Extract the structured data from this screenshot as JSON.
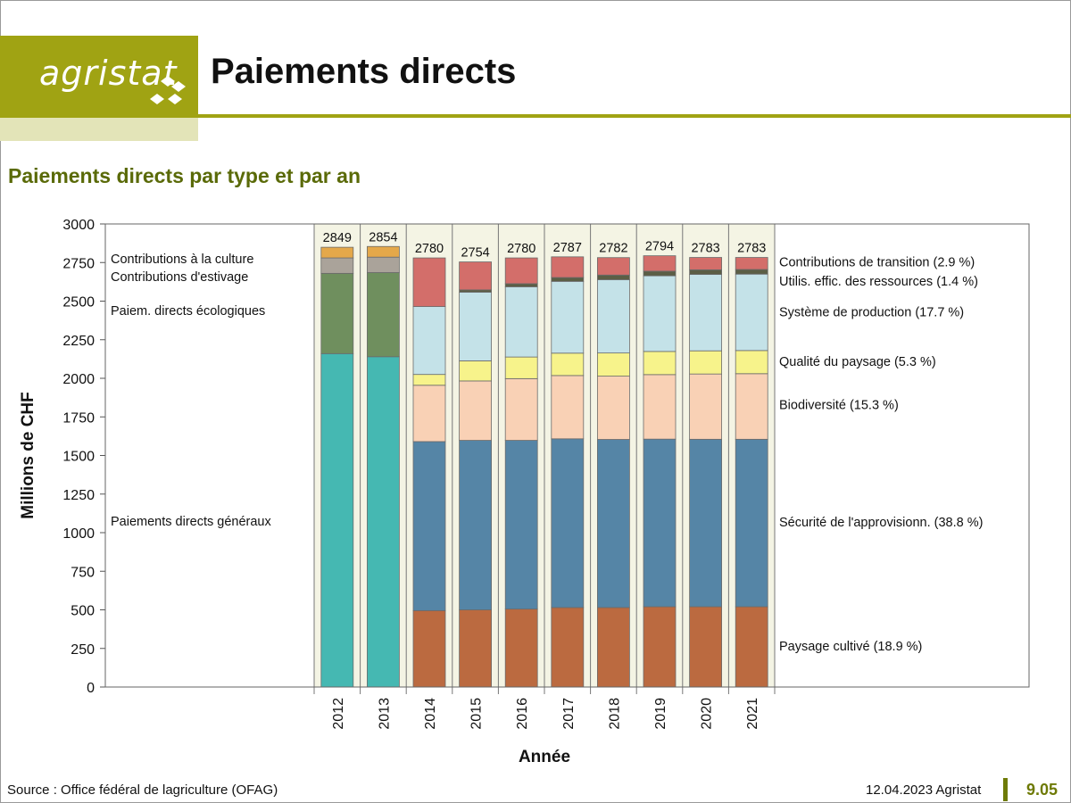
{
  "header": {
    "logo_text": "agristat",
    "title": "Paiements directs"
  },
  "subtitle": "Paiements directs par type et par an",
  "footer": {
    "source": "Source : Office fédéral de lagriculture (OFAG)",
    "date": "12.04.2023 Agristat",
    "page": "9.05"
  },
  "colors": {
    "brand": "#a0a313",
    "brand_dark": "#6e7a06",
    "subtitle": "#5a6a08",
    "plot_bg": "#f4f4e4"
  },
  "chart_data": {
    "type": "bar",
    "stacked": true,
    "title": "",
    "xlabel": "Année",
    "ylabel": "Millions de CHF",
    "ylim": [
      0,
      3000
    ],
    "yticks": [
      0,
      250,
      500,
      750,
      1000,
      1250,
      1500,
      1750,
      2000,
      2250,
      2500,
      2750,
      3000
    ],
    "categories": [
      "2012",
      "2013",
      "2014",
      "2015",
      "2016",
      "2017",
      "2018",
      "2019",
      "2020",
      "2021"
    ],
    "totals": [
      2849,
      2854,
      2780,
      2754,
      2780,
      2787,
      2782,
      2794,
      2783,
      2783
    ],
    "series": [
      {
        "name": "Paiements directs généraux",
        "color": "#45b8b2",
        "values": [
          2160,
          2140,
          0,
          0,
          0,
          0,
          0,
          0,
          0,
          0
        ]
      },
      {
        "name": "Paiem. directs écologiques",
        "color": "#6f8f5e",
        "values": [
          520,
          545,
          0,
          0,
          0,
          0,
          0,
          0,
          0,
          0
        ]
      },
      {
        "name": "Contributions d'estivage",
        "color": "#aaa39a",
        "values": [
          100,
          100,
          0,
          0,
          0,
          0,
          0,
          0,
          0,
          0
        ]
      },
      {
        "name": "Contributions à la culture",
        "color": "#e4a84a",
        "values": [
          69,
          69,
          0,
          0,
          0,
          0,
          0,
          0,
          0,
          0
        ]
      },
      {
        "name": "Paysage cultivé (18.9 %)",
        "color": "#bb6a40",
        "values": [
          0,
          0,
          495,
          500,
          505,
          515,
          515,
          520,
          520,
          520
        ]
      },
      {
        "name": "Sécurité de l'approvisionn. (38.8 %)",
        "color": "#5585a6",
        "values": [
          0,
          0,
          1095,
          1098,
          1093,
          1093,
          1089,
          1086,
          1085,
          1085
        ]
      },
      {
        "name": "Biodiversité (15.3 %)",
        "color": "#f9d1b5",
        "values": [
          0,
          0,
          365,
          385,
          400,
          410,
          410,
          418,
          423,
          425
        ]
      },
      {
        "name": "Qualité du paysage (5.3 %)",
        "color": "#f7f38b",
        "values": [
          0,
          0,
          70,
          130,
          140,
          145,
          150,
          150,
          150,
          150
        ]
      },
      {
        "name": "Système de production (17.7 %)",
        "color": "#c4e2e8",
        "values": [
          0,
          0,
          440,
          445,
          455,
          465,
          475,
          490,
          495,
          495
        ]
      },
      {
        "name": "Utilis. effic. des ressources (1.4 %)",
        "color": "#5b5e45",
        "values": [
          0,
          0,
          0,
          15,
          20,
          25,
          30,
          30,
          30,
          30
        ]
      },
      {
        "name": "Contributions de transition (2.9 %)",
        "color": "#d36e6a",
        "values": [
          0,
          0,
          315,
          181,
          167,
          134,
          113,
          100,
          80,
          78
        ]
      }
    ]
  }
}
